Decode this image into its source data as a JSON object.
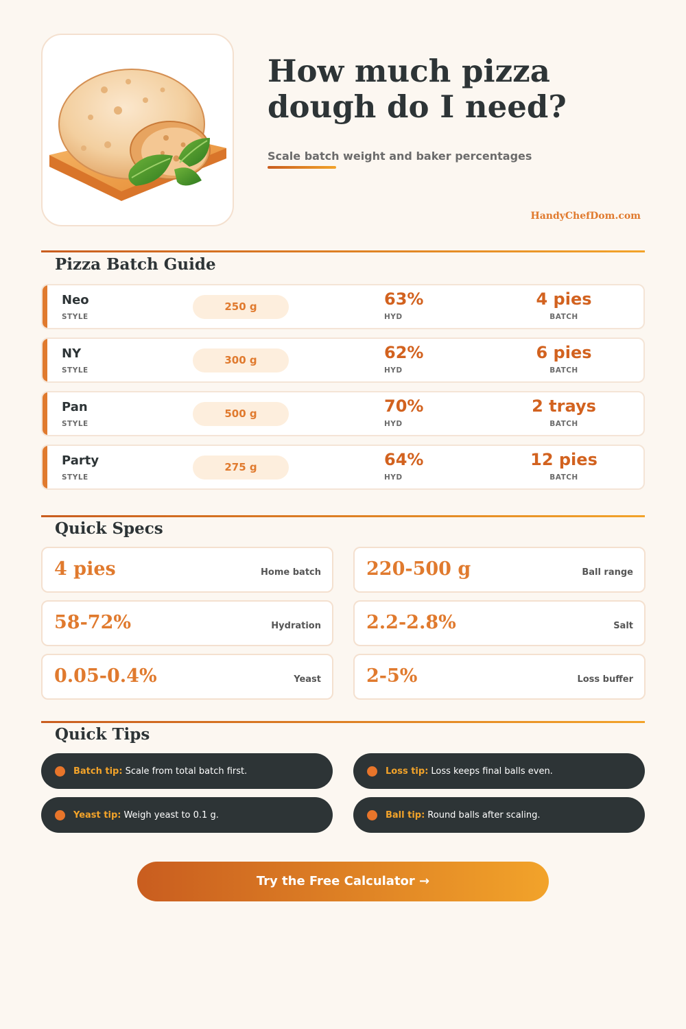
{
  "header": {
    "title": "How much pizza dough do I need?",
    "subtitle": "Scale batch weight and baker percentages",
    "site": "HandyChefDom.com",
    "image_icon": "dough-ball-with-basil-icon"
  },
  "batch_guide": {
    "title": "Pizza Batch Guide",
    "labels": {
      "style": "STYLE",
      "hyd": "HYD",
      "batch": "BATCH"
    },
    "rows": [
      {
        "style": "Neo",
        "weight": "250 g",
        "hydration": "63%",
        "batch": "4 pies"
      },
      {
        "style": "NY",
        "weight": "300 g",
        "hydration": "62%",
        "batch": "6 pies"
      },
      {
        "style": "Pan",
        "weight": "500 g",
        "hydration": "70%",
        "batch": "2 trays"
      },
      {
        "style": "Party",
        "weight": "275 g",
        "hydration": "64%",
        "batch": "12 pies"
      }
    ]
  },
  "quick_specs": {
    "title": "Quick Specs",
    "items": [
      {
        "value": "4 pies",
        "label": "Home batch"
      },
      {
        "value": "220-500 g",
        "label": "Ball range"
      },
      {
        "value": "58-72%",
        "label": "Hydration"
      },
      {
        "value": "2.2-2.8%",
        "label": "Salt"
      },
      {
        "value": "0.05-0.4%",
        "label": "Yeast"
      },
      {
        "value": "2-5%",
        "label": "Loss buffer"
      }
    ]
  },
  "quick_tips": {
    "title": "Quick Tips",
    "items": [
      {
        "key": "Batch tip:",
        "text": "Scale from total batch first."
      },
      {
        "key": "Loss tip:",
        "text": "Loss keeps final balls even."
      },
      {
        "key": "Yeast tip:",
        "text": "Weigh yeast to 0.1 g."
      },
      {
        "key": "Ball tip:",
        "text": "Round balls after scaling."
      }
    ]
  },
  "cta": {
    "label": "Try the Free Calculator →"
  },
  "colors": {
    "accent": "#e07a2e",
    "accent_dark": "#c95d1f",
    "accent_light": "#f2a32a",
    "dark": "#2d3436",
    "background": "#fcf7f1"
  }
}
